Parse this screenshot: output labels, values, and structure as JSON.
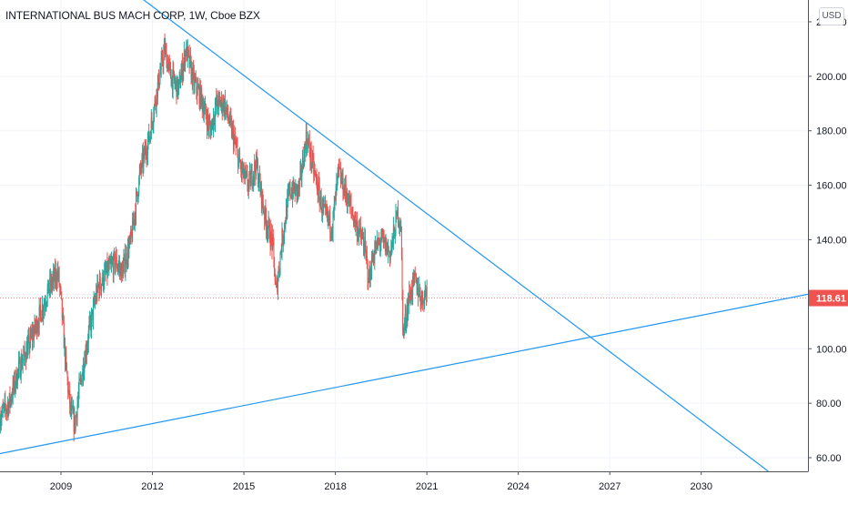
{
  "chart_data": {
    "type": "candlestick",
    "title": "INTERNATIONAL BUS MACH CORP, 1W, Cboe BZX",
    "currency": "USD",
    "current_price": 118.61,
    "ylim": [
      55,
      228
    ],
    "xlim": [
      2007.0,
      2033.5
    ],
    "y_ticks": [
      {
        "value": 60,
        "label": "60.00"
      },
      {
        "value": 80,
        "label": "80.00"
      },
      {
        "value": 100,
        "label": "100.00"
      },
      {
        "value": 120,
        "label": "120.00"
      },
      {
        "value": 140,
        "label": "140.00"
      },
      {
        "value": 160,
        "label": "160.00"
      },
      {
        "value": 180,
        "label": "180.00"
      },
      {
        "value": 200,
        "label": "200.00"
      },
      {
        "value": 220,
        "label": "220.00"
      }
    ],
    "x_ticks": [
      {
        "value": 2009,
        "label": "2009"
      },
      {
        "value": 2012,
        "label": "2012"
      },
      {
        "value": 2015,
        "label": "2015"
      },
      {
        "value": 2018,
        "label": "2018"
      },
      {
        "value": 2021,
        "label": "2021"
      },
      {
        "value": 2024,
        "label": "2024"
      },
      {
        "value": 2027,
        "label": "2027"
      },
      {
        "value": 2030,
        "label": "2030"
      }
    ],
    "price_path": [
      [
        2007.0,
        75
      ],
      [
        2007.3,
        80
      ],
      [
        2007.6,
        92
      ],
      [
        2007.9,
        100
      ],
      [
        2008.3,
        112
      ],
      [
        2008.6,
        122
      ],
      [
        2008.9,
        128
      ],
      [
        2009.0,
        118
      ],
      [
        2009.15,
        95
      ],
      [
        2009.3,
        78
      ],
      [
        2009.45,
        72
      ],
      [
        2009.6,
        85
      ],
      [
        2009.9,
        105
      ],
      [
        2010.2,
        122
      ],
      [
        2010.5,
        128
      ],
      [
        2010.8,
        132
      ],
      [
        2011.0,
        128
      ],
      [
        2011.3,
        140
      ],
      [
        2011.6,
        165
      ],
      [
        2011.9,
        178
      ],
      [
        2012.15,
        195
      ],
      [
        2012.4,
        210
      ],
      [
        2012.6,
        200
      ],
      [
        2012.85,
        195
      ],
      [
        2013.1,
        210
      ],
      [
        2013.35,
        198
      ],
      [
        2013.6,
        192
      ],
      [
        2013.9,
        180
      ],
      [
        2014.1,
        190
      ],
      [
        2014.35,
        190
      ],
      [
        2014.6,
        180
      ],
      [
        2014.9,
        166
      ],
      [
        2015.15,
        160
      ],
      [
        2015.4,
        168
      ],
      [
        2015.7,
        148
      ],
      [
        2015.95,
        138
      ],
      [
        2016.05,
        120
      ],
      [
        2016.25,
        140
      ],
      [
        2016.5,
        158
      ],
      [
        2016.8,
        158
      ],
      [
        2017.05,
        178
      ],
      [
        2017.3,
        165
      ],
      [
        2017.6,
        150
      ],
      [
        2017.9,
        145
      ],
      [
        2018.1,
        165
      ],
      [
        2018.4,
        155
      ],
      [
        2018.7,
        145
      ],
      [
        2018.95,
        138
      ],
      [
        2019.1,
        125
      ],
      [
        2019.25,
        135
      ],
      [
        2019.5,
        140
      ],
      [
        2019.8,
        135
      ],
      [
        2020.05,
        150
      ],
      [
        2020.15,
        145
      ],
      [
        2020.22,
        105
      ],
      [
        2020.4,
        118
      ],
      [
        2020.6,
        125
      ],
      [
        2020.85,
        118
      ],
      [
        2021.0,
        122
      ]
    ],
    "trendlines": [
      {
        "from": [
          2011.6,
          229.0
        ],
        "to": [
          2032.2,
          55.0
        ]
      },
      {
        "from": [
          2007.0,
          61.5
        ],
        "to": [
          2033.5,
          120.0
        ]
      }
    ],
    "colors": {
      "up": "#26a69a",
      "down": "#ef5350",
      "trendline": "#2196f3",
      "price_line": "#ef5350",
      "price_tag_bg": "#ef5350",
      "grid": "#f0f3fa",
      "axis_text": "#131722"
    }
  }
}
